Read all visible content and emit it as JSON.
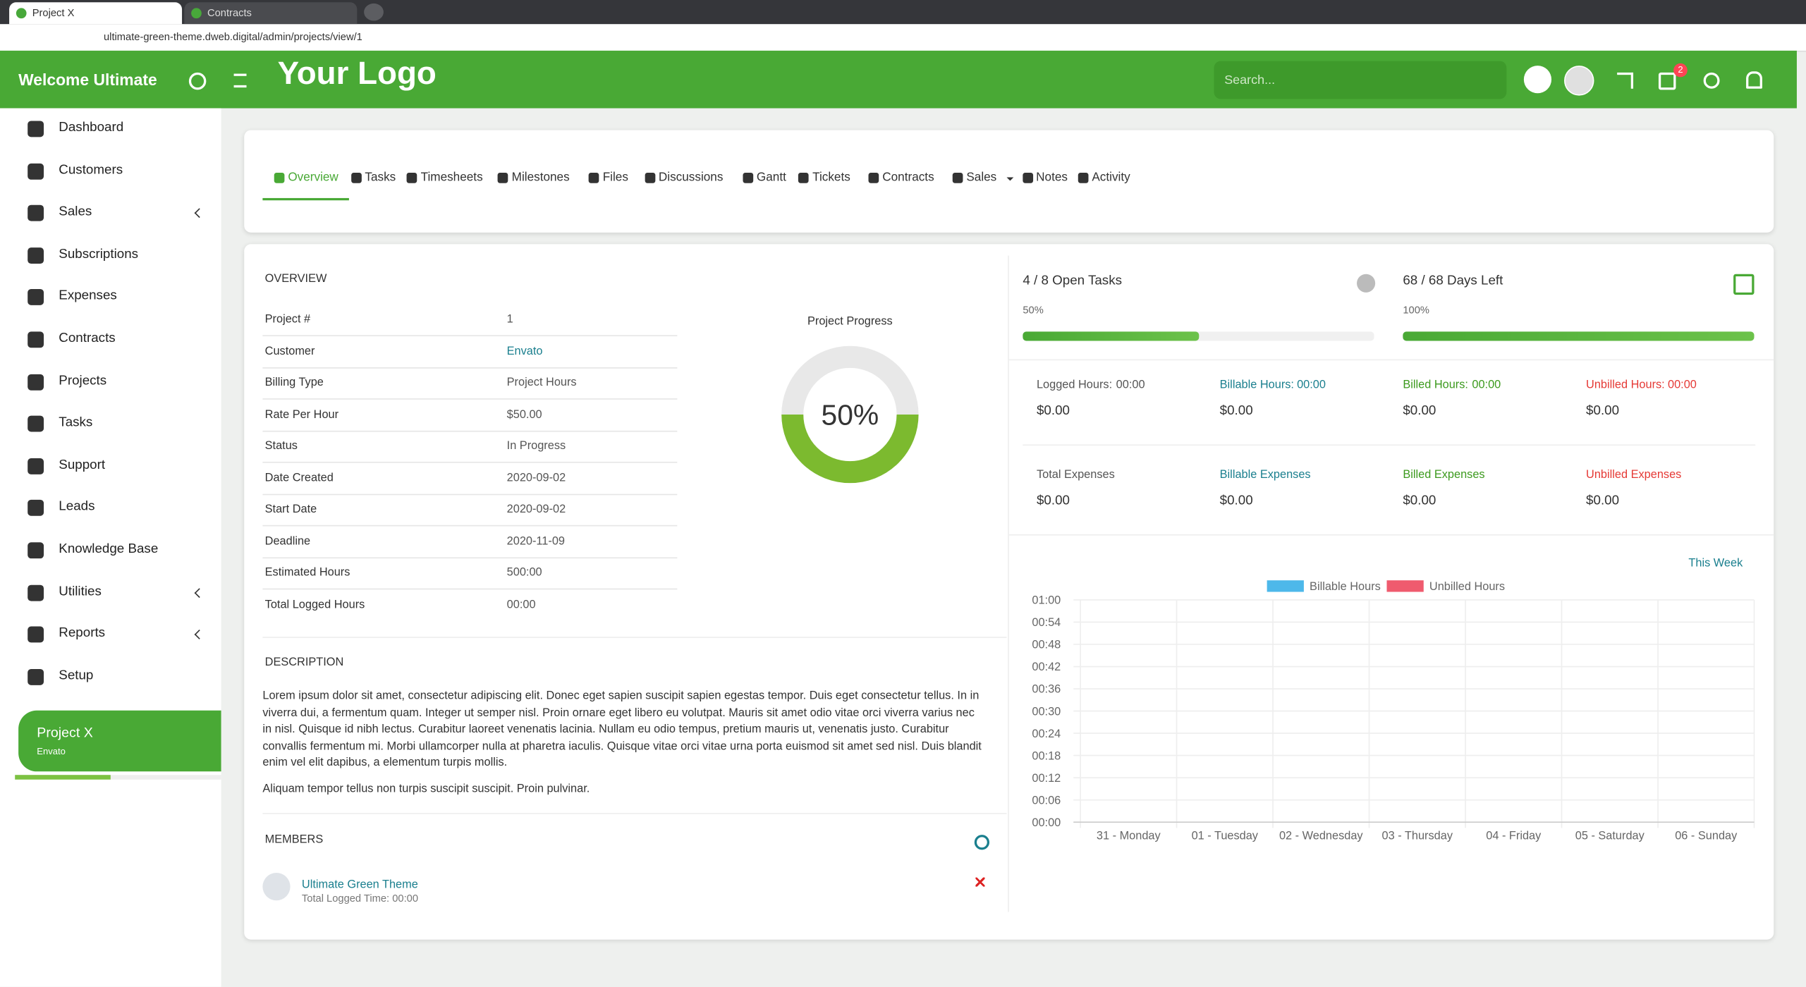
{
  "browser": {
    "tabs": [
      "Project X",
      "Contracts"
    ],
    "url": "ultimate-green-theme.dweb.digital/admin/projects/view/1"
  },
  "header": {
    "welcome": "Welcome Ultimate",
    "logo": "Your Logo",
    "search_placeholder": "Search...",
    "notification_count": 2
  },
  "sidebar": {
    "menu": [
      {
        "label": "Dashboard"
      },
      {
        "label": "Customers"
      },
      {
        "label": "Sales",
        "has_submenu": true
      },
      {
        "label": "Subscriptions"
      },
      {
        "label": "Expenses"
      },
      {
        "label": "Contracts"
      },
      {
        "label": "Projects"
      },
      {
        "label": "Tasks"
      },
      {
        "label": "Support"
      },
      {
        "label": "Leads"
      },
      {
        "label": "Knowledge Base"
      },
      {
        "label": "Utilities",
        "has_submenu": true
      },
      {
        "label": "Reports",
        "has_submenu": true
      },
      {
        "label": "Setup"
      }
    ],
    "project": {
      "name": "Project X",
      "client": "Envato"
    }
  },
  "tabs": [
    {
      "label": "Overview",
      "active": true
    },
    {
      "label": "Tasks"
    },
    {
      "label": "Timesheets"
    },
    {
      "label": "Milestones"
    },
    {
      "label": "Files"
    },
    {
      "label": "Discussions"
    },
    {
      "label": "Gantt"
    },
    {
      "label": "Tickets"
    },
    {
      "label": "Contracts"
    },
    {
      "label": "Sales",
      "has_submenu": true
    },
    {
      "label": "Notes"
    },
    {
      "label": "Activity"
    }
  ],
  "overview": {
    "heading": "OVERVIEW",
    "rows": [
      [
        "Project #",
        "1"
      ],
      [
        "Customer",
        "Envato"
      ],
      [
        "Billing Type",
        "Project Hours"
      ],
      [
        "Rate Per Hour",
        "$50.00"
      ],
      [
        "Status",
        "In Progress"
      ],
      [
        "Date Created",
        "2020-09-02"
      ],
      [
        "Start Date",
        "2020-09-02"
      ],
      [
        "Deadline",
        "2020-11-09"
      ],
      [
        "Estimated Hours",
        "500:00"
      ],
      [
        "Total Logged Hours",
        "00:00"
      ]
    ]
  },
  "progress": {
    "title": "Project Progress",
    "value": 50,
    "value_label": "50%"
  },
  "tasks": {
    "label": "4 / 8 Open Tasks",
    "percent": 50,
    "percent_label": "50%"
  },
  "days": {
    "label": "68 / 68 Days Left",
    "percent": 100,
    "percent_label": "100%"
  },
  "stats": [
    [
      {
        "label": "Logged Hours:",
        "hours": "00:00",
        "value": "$0.00"
      },
      {
        "label": "Billable Hours:",
        "hours": "00:00",
        "value": "$0.00"
      },
      {
        "label": "Billed Hours:",
        "hours": "00:00",
        "value": "$0.00"
      },
      {
        "label": "Unbilled Hours:",
        "hours": "00:00",
        "value": "$0.00"
      }
    ],
    [
      {
        "label": "Total Expenses",
        "value": "$0.00"
      },
      {
        "label": "Billable Expenses",
        "value": "$0.00"
      },
      {
        "label": "Billed Expenses",
        "value": "$0.00"
      },
      {
        "label": "Unbilled Expenses",
        "value": "$0.00"
      }
    ]
  ],
  "description": {
    "heading": "DESCRIPTION",
    "paragraphs": [
      "Lorem ipsum dolor sit amet, consectetur adipiscing elit. Donec eget sapien suscipit sapien egestas tempor. Duis eget consectetur tellus. In in viverra dui, a fermentum quam. Integer ut semper nisl. Proin ornare eget libero eu volutpat. Mauris sit amet odio vitae orci viverra varius nec in nisl. Quisque id nibh lectus. Curabitur laoreet venenatis lacinia. Nullam eu odio tempus, pretium mauris ut, venenatis justo. Curabitur convallis fermentum mi. Morbi ullamcorper nulla at pharetra iaculis. Quisque vitae orci vitae urna porta euismod sit amet sed nisl. Duis blandit enim vel elit dapibus, a elementum turpis mollis.",
      "Aliquam tempor tellus non turpis suscipit suscipit. Proin pulvinar."
    ]
  },
  "members": {
    "heading": "MEMBERS",
    "items": [
      {
        "name": "Ultimate Green Theme",
        "detail": "Total Logged Time: 00:00"
      }
    ]
  },
  "chart_data": {
    "type": "bar",
    "period": "This Week",
    "categories": [
      "31 - Monday",
      "01 - Tuesday",
      "02 - Wednesday",
      "03 - Thursday",
      "04 - Friday",
      "05 - Saturday",
      "06 - Sunday"
    ],
    "series": [
      {
        "name": "Billable Hours",
        "color": "#4db8ea",
        "values": [
          0,
          0,
          0,
          0,
          0,
          0,
          0
        ]
      },
      {
        "name": "Unbilled Hours",
        "color": "#ef5b6e",
        "values": [
          0,
          0,
          0,
          0,
          0,
          0,
          0
        ]
      }
    ],
    "ylim": [
      0,
      1
    ],
    "yticks": [
      {
        "value": 0,
        "label": "00:00"
      },
      {
        "value": 0.1,
        "label": "00:06"
      },
      {
        "value": 0.2,
        "label": "00:12"
      },
      {
        "value": 0.3,
        "label": "00:18"
      },
      {
        "value": 0.4,
        "label": "00:24"
      },
      {
        "value": 0.5,
        "label": "00:30"
      },
      {
        "value": 0.6,
        "label": "00:36"
      },
      {
        "value": 0.7,
        "label": "00:42"
      },
      {
        "value": 0.8,
        "label": "00:48"
      },
      {
        "value": 0.9,
        "label": "00:54"
      },
      {
        "value": 1,
        "label": "01:00"
      }
    ],
    "grid": true
  }
}
